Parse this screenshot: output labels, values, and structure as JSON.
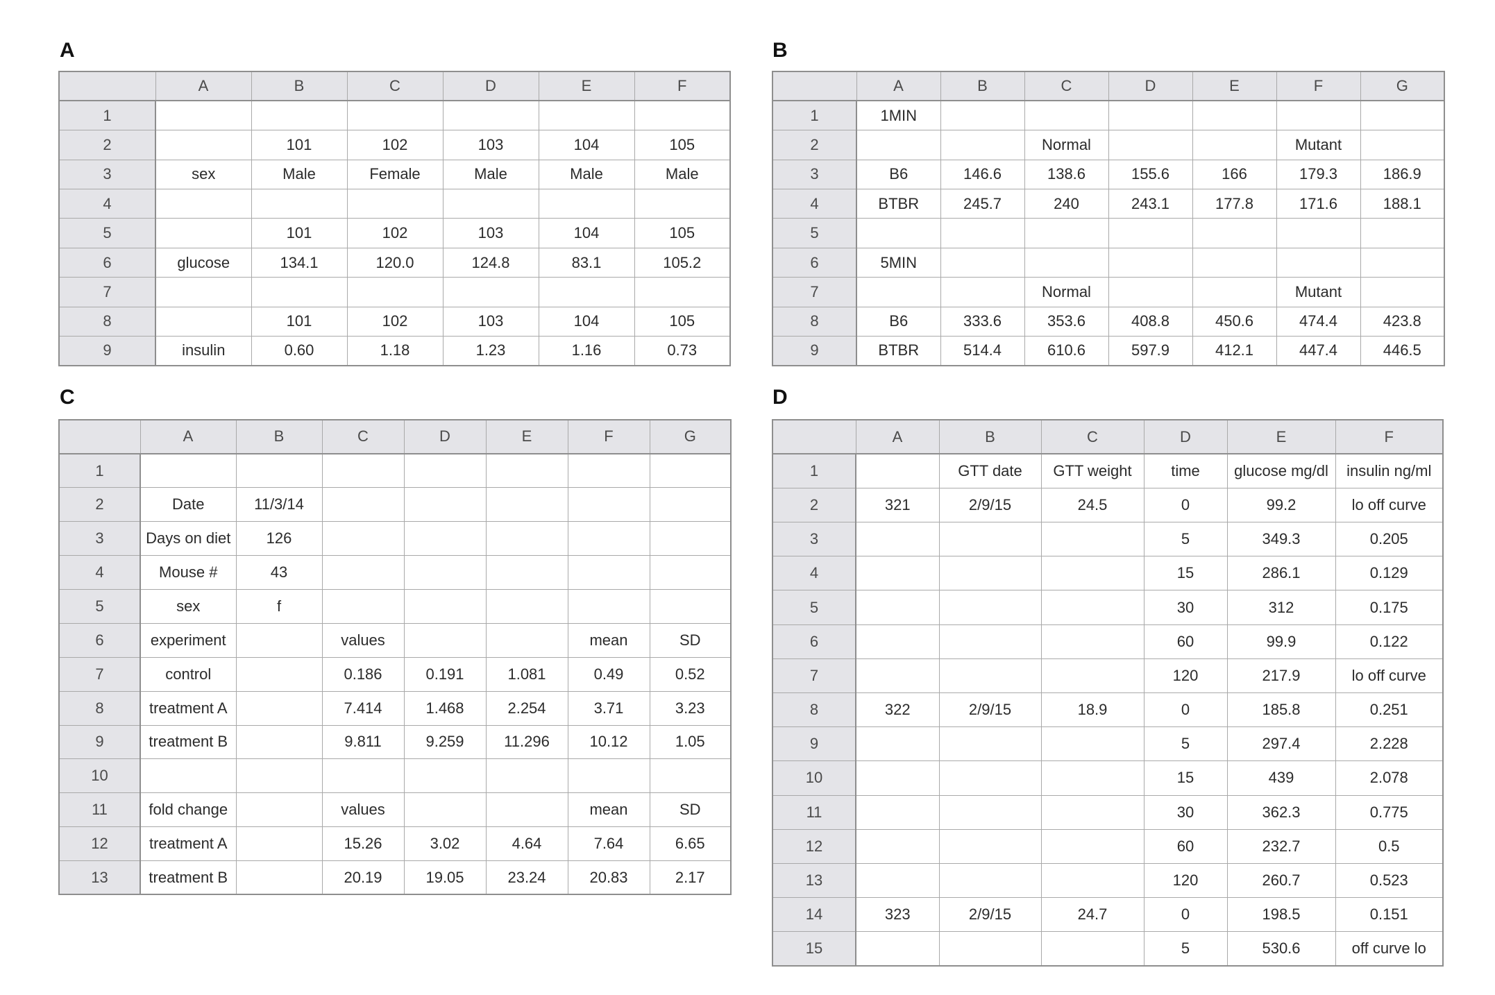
{
  "panels": [
    {
      "label": "A",
      "columns": [
        "",
        "A",
        "B",
        "C",
        "D",
        "E",
        "F"
      ],
      "rows": [
        [
          "1",
          "",
          "",
          "",
          "",
          "",
          ""
        ],
        [
          "2",
          "",
          "101",
          "102",
          "103",
          "104",
          "105"
        ],
        [
          "3",
          "sex",
          "Male",
          "Female",
          "Male",
          "Male",
          "Male"
        ],
        [
          "4",
          "",
          "",
          "",
          "",
          "",
          ""
        ],
        [
          "5",
          "",
          "101",
          "102",
          "103",
          "104",
          "105"
        ],
        [
          "6",
          "glucose",
          "134.1",
          "120.0",
          "124.8",
          "83.1",
          "105.2"
        ],
        [
          "7",
          "",
          "",
          "",
          "",
          "",
          ""
        ],
        [
          "8",
          "",
          "101",
          "102",
          "103",
          "104",
          "105"
        ],
        [
          "9",
          "insulin",
          "0.60",
          "1.18",
          "1.23",
          "1.16",
          "0.73"
        ]
      ]
    },
    {
      "label": "B",
      "columns": [
        "",
        "A",
        "B",
        "C",
        "D",
        "E",
        "F",
        "G"
      ],
      "rows": [
        [
          "1",
          "1MIN",
          "",
          "",
          "",
          "",
          "",
          ""
        ],
        [
          "2",
          "",
          "",
          "Normal",
          "",
          "",
          "Mutant",
          ""
        ],
        [
          "3",
          "B6",
          "146.6",
          "138.6",
          "155.6",
          "166",
          "179.3",
          "186.9"
        ],
        [
          "4",
          "BTBR",
          "245.7",
          "240",
          "243.1",
          "177.8",
          "171.6",
          "188.1"
        ],
        [
          "5",
          "",
          "",
          "",
          "",
          "",
          "",
          ""
        ],
        [
          "6",
          "5MIN",
          "",
          "",
          "",
          "",
          "",
          ""
        ],
        [
          "7",
          "",
          "",
          "Normal",
          "",
          "",
          "Mutant",
          ""
        ],
        [
          "8",
          "B6",
          "333.6",
          "353.6",
          "408.8",
          "450.6",
          "474.4",
          "423.8"
        ],
        [
          "9",
          "BTBR",
          "514.4",
          "610.6",
          "597.9",
          "412.1",
          "447.4",
          "446.5"
        ]
      ]
    },
    {
      "label": "C",
      "columns": [
        "",
        "A",
        "B",
        "C",
        "D",
        "E",
        "F",
        "G"
      ],
      "rows": [
        [
          "1",
          "",
          "",
          "",
          "",
          "",
          "",
          ""
        ],
        [
          "2",
          "Date",
          "11/3/14",
          "",
          "",
          "",
          "",
          ""
        ],
        [
          "3",
          "Days on diet",
          "126",
          "",
          "",
          "",
          "",
          ""
        ],
        [
          "4",
          "Mouse #",
          "43",
          "",
          "",
          "",
          "",
          ""
        ],
        [
          "5",
          "sex",
          "f",
          "",
          "",
          "",
          "",
          ""
        ],
        [
          "6",
          "experiment",
          "",
          "values",
          "",
          "",
          "mean",
          "SD"
        ],
        [
          "7",
          "control",
          "",
          "0.186",
          "0.191",
          "1.081",
          "0.49",
          "0.52"
        ],
        [
          "8",
          "treatment A",
          "",
          "7.414",
          "1.468",
          "2.254",
          "3.71",
          "3.23"
        ],
        [
          "9",
          "treatment B",
          "",
          "9.811",
          "9.259",
          "11.296",
          "10.12",
          "1.05"
        ],
        [
          "10",
          "",
          "",
          "",
          "",
          "",
          "",
          ""
        ],
        [
          "11",
          "fold change",
          "",
          "values",
          "",
          "",
          "mean",
          "SD"
        ],
        [
          "12",
          "treatment A",
          "",
          "15.26",
          "3.02",
          "4.64",
          "7.64",
          "6.65"
        ],
        [
          "13",
          "treatment B",
          "",
          "20.19",
          "19.05",
          "23.24",
          "20.83",
          "2.17"
        ]
      ]
    },
    {
      "label": "D",
      "columns": [
        "",
        "A",
        "B",
        "C",
        "D",
        "E",
        "F"
      ],
      "rows": [
        [
          "1",
          "",
          "GTT date",
          "GTT weight",
          "time",
          "glucose mg/dl",
          "insulin ng/ml"
        ],
        [
          "2",
          "321",
          "2/9/15",
          "24.5",
          "0",
          "99.2",
          "lo off curve"
        ],
        [
          "3",
          "",
          "",
          "",
          "5",
          "349.3",
          "0.205"
        ],
        [
          "4",
          "",
          "",
          "",
          "15",
          "286.1",
          "0.129"
        ],
        [
          "5",
          "",
          "",
          "",
          "30",
          "312",
          "0.175"
        ],
        [
          "6",
          "",
          "",
          "",
          "60",
          "99.9",
          "0.122"
        ],
        [
          "7",
          "",
          "",
          "",
          "120",
          "217.9",
          "lo off curve"
        ],
        [
          "8",
          "322",
          "2/9/15",
          "18.9",
          "0",
          "185.8",
          "0.251"
        ],
        [
          "9",
          "",
          "",
          "",
          "5",
          "297.4",
          "2.228"
        ],
        [
          "10",
          "",
          "",
          "",
          "15",
          "439",
          "2.078"
        ],
        [
          "11",
          "",
          "",
          "",
          "30",
          "362.3",
          "0.775"
        ],
        [
          "12",
          "",
          "",
          "",
          "60",
          "232.7",
          "0.5"
        ],
        [
          "13",
          "",
          "",
          "",
          "120",
          "260.7",
          "0.523"
        ],
        [
          "14",
          "323",
          "2/9/15",
          "24.7",
          "0",
          "198.5",
          "0.151"
        ],
        [
          "15",
          "",
          "",
          "",
          "5",
          "530.6",
          "off curve lo"
        ]
      ]
    }
  ]
}
